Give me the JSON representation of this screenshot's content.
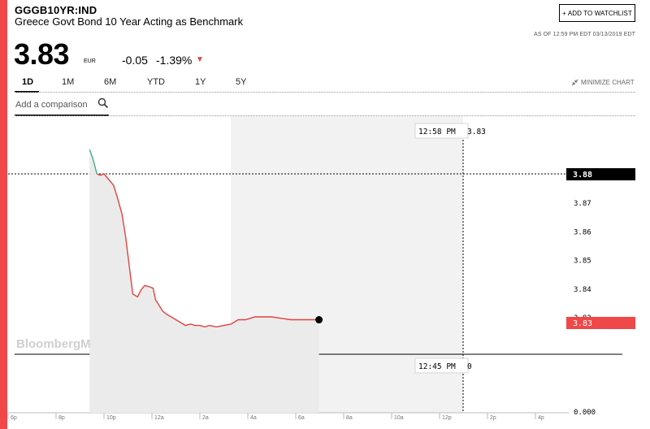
{
  "header": {
    "ticker": "GGGB10YR:IND",
    "name": "Greece Govt Bond 10 Year Acting as Benchmark",
    "watchlist_label": "ADD TO WATCHLIST",
    "as_of": "AS OF 12:59 PM EDT 03/13/2019 EDT"
  },
  "quote": {
    "price": "3.83",
    "currency": "EUR",
    "change": "-0.05",
    "change_pct": "-1.39%",
    "direction": "down"
  },
  "tabs": [
    {
      "label": "1D",
      "active": true
    },
    {
      "label": "1M",
      "active": false
    },
    {
      "label": "6M",
      "active": false
    },
    {
      "label": "YTD",
      "active": false
    },
    {
      "label": "1Y",
      "active": false
    },
    {
      "label": "5Y",
      "active": false
    }
  ],
  "minimize_label": "MINIMIZE CHART",
  "compare": {
    "placeholder": "Add a comparison"
  },
  "chart": {
    "watermark": "BloombergMarkets",
    "crosshair_top": {
      "time": "12:58 PM",
      "value": "3.83"
    },
    "crosshair_bottom": {
      "time": "12:45 PM",
      "value": "0"
    },
    "prev_close_label": "3.88",
    "last_label": "3.83",
    "y_ticks": [
      "3.88",
      "3.87",
      "3.86",
      "3.85",
      "3.84",
      "3.83"
    ],
    "zero_label": "0.000",
    "x_ticks": [
      "6p",
      "8p",
      "10p",
      "12a",
      "2a",
      "4a",
      "6a",
      "8a",
      "10a",
      "12p",
      "2p",
      "4p"
    ],
    "colors": {
      "accent": "#f04848",
      "line_down": "#e2423e",
      "line_up": "#3bb08f",
      "label_bg": "#000000"
    }
  },
  "chart_data": {
    "type": "line",
    "ylim": [
      3.825,
      3.89
    ],
    "prev_close": 3.88,
    "x": [
      3.4,
      3.55,
      3.7,
      3.85,
      4.0,
      4.2,
      4.4,
      4.55,
      4.75,
      4.9,
      5.05,
      5.2,
      5.4,
      5.55,
      5.7,
      5.9,
      6.05,
      6.15,
      6.3,
      6.45,
      6.6,
      6.8,
      7.0,
      7.2,
      7.4,
      7.6,
      7.8,
      8.0,
      8.2,
      8.4,
      8.7,
      9.0,
      9.3,
      9.6,
      9.9,
      10.1,
      10.3,
      10.6,
      11.0,
      11.4,
      11.8,
      12.2,
      12.6,
      12.97
    ],
    "y": [
      3.8885,
      3.885,
      3.88,
      3.8795,
      3.88,
      3.878,
      3.876,
      3.872,
      3.866,
      3.858,
      3.848,
      3.838,
      3.837,
      3.8395,
      3.841,
      3.8405,
      3.84,
      3.836,
      3.834,
      3.832,
      3.831,
      3.83,
      3.829,
      3.828,
      3.827,
      3.8275,
      3.827,
      3.827,
      3.8265,
      3.827,
      3.8265,
      3.827,
      3.8275,
      3.829,
      3.829,
      3.8295,
      3.83,
      3.83,
      3.83,
      3.8295,
      3.829,
      3.829,
      3.829,
      3.829
    ]
  }
}
